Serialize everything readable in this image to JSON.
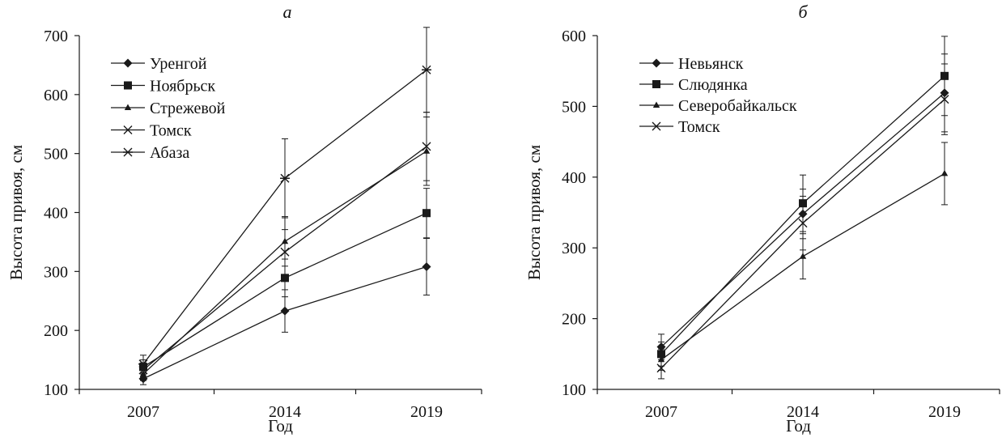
{
  "figure": {
    "x_ticks": [
      "2007",
      "2014",
      "2019"
    ]
  },
  "chart_data": [
    {
      "type": "line",
      "title": "а",
      "xlabel": "Год",
      "ylabel": "Высота привоя, см",
      "x": [
        2007,
        2014,
        2019
      ],
      "ylim": [
        100,
        700
      ],
      "yticks": [
        100,
        200,
        300,
        400,
        500,
        600,
        700
      ],
      "grid": false,
      "legend_position": "top-left",
      "series": [
        {
          "name": "Уренгой",
          "marker": "diamond",
          "values": [
            118,
            233,
            308
          ],
          "error": [
            10,
            36,
            48
          ]
        },
        {
          "name": "Ноябрьск",
          "marker": "square",
          "values": [
            138,
            289,
            399
          ],
          "error": [
            12,
            32,
            42
          ]
        },
        {
          "name": "Стрежевой",
          "marker": "triangle",
          "values": [
            126,
            351,
            504
          ],
          "error": [
            11,
            42,
            58
          ]
        },
        {
          "name": "Томск",
          "marker": "x",
          "values": [
            133,
            333,
            512
          ],
          "error": [
            12,
            38,
            58
          ]
        },
        {
          "name": "Абаза",
          "marker": "asterisk",
          "values": [
            143,
            458,
            642
          ],
          "error": [
            15,
            67,
            72
          ]
        }
      ]
    },
    {
      "type": "line",
      "title": "б",
      "xlabel": "Год",
      "ylabel": "Высота привоя, см",
      "x": [
        2007,
        2014,
        2019
      ],
      "ylim": [
        100,
        600
      ],
      "yticks": [
        100,
        200,
        300,
        400,
        500,
        600
      ],
      "grid": false,
      "legend_position": "top-left",
      "series": [
        {
          "name": "Невьянск",
          "marker": "diamond",
          "values": [
            160,
            348,
            519
          ],
          "error": [
            18,
            35,
            55
          ]
        },
        {
          "name": "Слюдянка",
          "marker": "square",
          "values": [
            150,
            363,
            543
          ],
          "error": [
            17,
            40,
            56
          ]
        },
        {
          "name": "Северобайкальск",
          "marker": "triangle",
          "values": [
            142,
            288,
            405
          ],
          "error": [
            15,
            32,
            44
          ]
        },
        {
          "name": "Томск",
          "marker": "x",
          "values": [
            130,
            335,
            510
          ],
          "error": [
            15,
            38,
            50
          ]
        }
      ]
    }
  ]
}
